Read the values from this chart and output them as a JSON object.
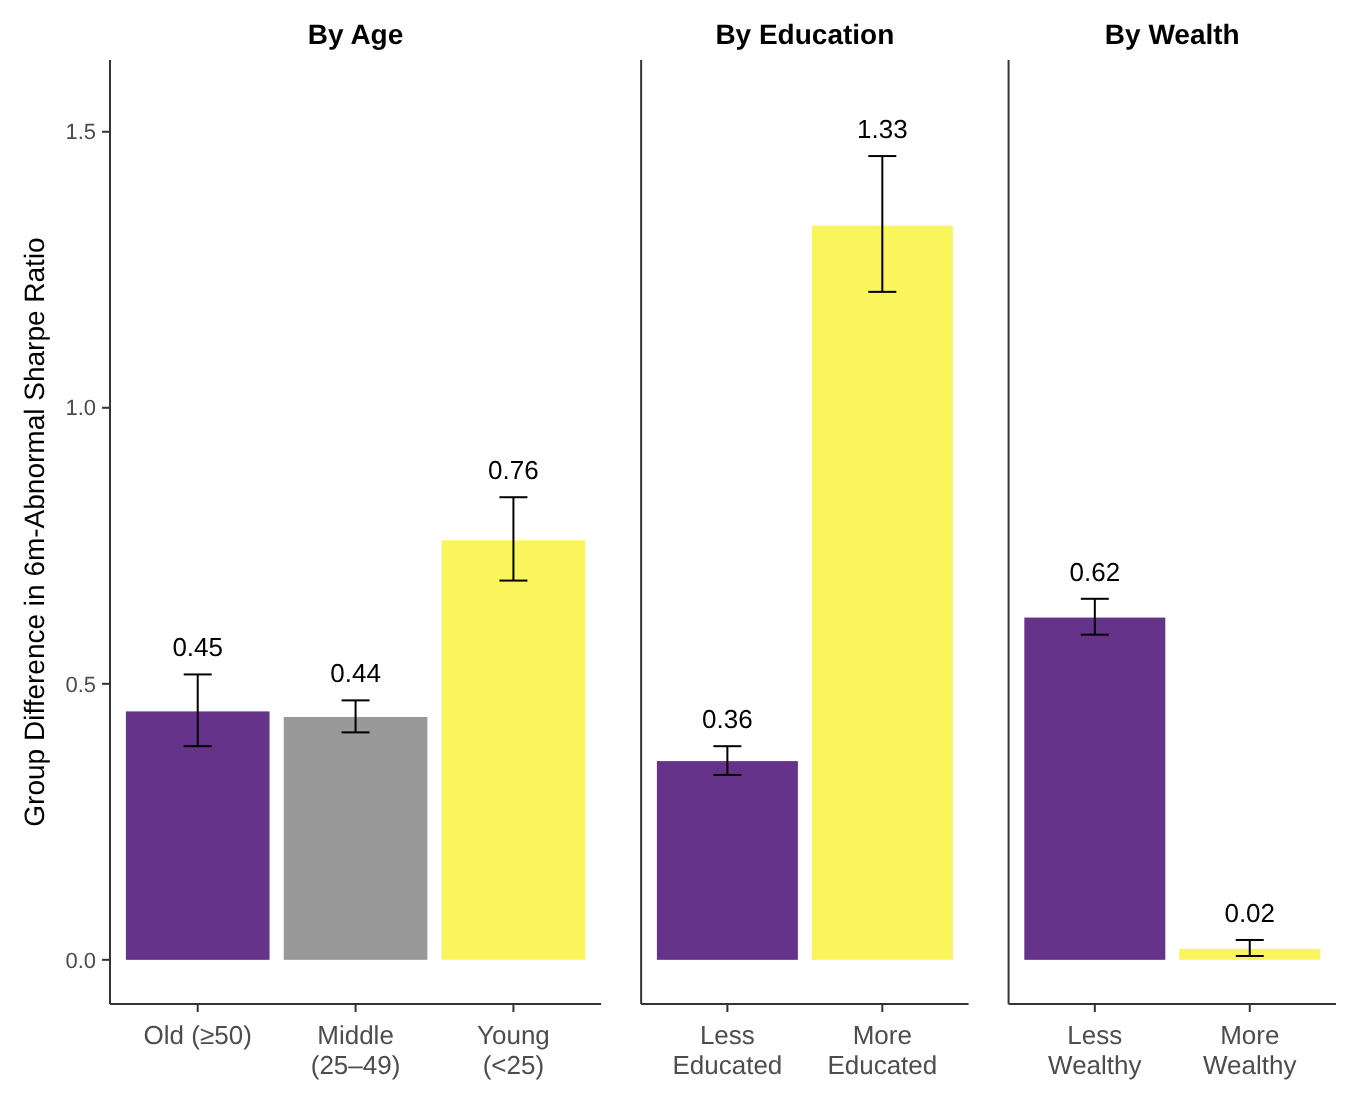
{
  "chart_data": [
    {
      "type": "bar",
      "title": "By Age",
      "ylabel": "Group Difference in 6m-Abnormal Sharpe Ratio",
      "categories": [
        "Old (≥50)",
        "Middle\n(25–49)",
        "Young\n(<25)"
      ],
      "values": [
        0.45,
        0.44,
        0.76
      ],
      "colors": [
        "#65338a",
        "#999999",
        "#fbf55d"
      ],
      "errors": [
        [
          0.387,
          0.517
        ],
        [
          0.412,
          0.47
        ],
        [
          0.687,
          0.838
        ]
      ],
      "ylim": [
        -0.08,
        1.63
      ],
      "yticks": [
        {
          "value": 0,
          "label": "0.0"
        },
        {
          "value": 0.5,
          "label": "0.5"
        },
        {
          "value": 1,
          "label": "1.0"
        },
        {
          "value": 1.5,
          "label": "1.5"
        }
      ],
      "data_labels": true
    },
    {
      "type": "bar",
      "title": "By Education",
      "categories": [
        "Less\nEducated",
        "More\nEducated"
      ],
      "values": [
        0.36,
        1.33
      ],
      "colors": [
        "#65338a",
        "#fbf55d"
      ],
      "errors": [
        [
          0.335,
          0.387
        ],
        [
          1.21,
          1.456
        ]
      ],
      "ylim": [
        -0.08,
        1.63
      ],
      "data_labels": true,
      "tick_labels": "x"
    },
    {
      "type": "bar",
      "title": "By Wealth",
      "categories": [
        "Less\nWealthy",
        "More\nWealthy"
      ],
      "values": [
        0.62,
        0.02
      ],
      "colors": [
        "#65338a",
        "#fbf55d"
      ],
      "errors": [
        [
          0.589,
          0.654
        ],
        [
          0.007,
          0.036
        ]
      ],
      "ylim": [
        -0.08,
        1.63
      ],
      "data_labels": true,
      "tick_labels": "x"
    }
  ]
}
